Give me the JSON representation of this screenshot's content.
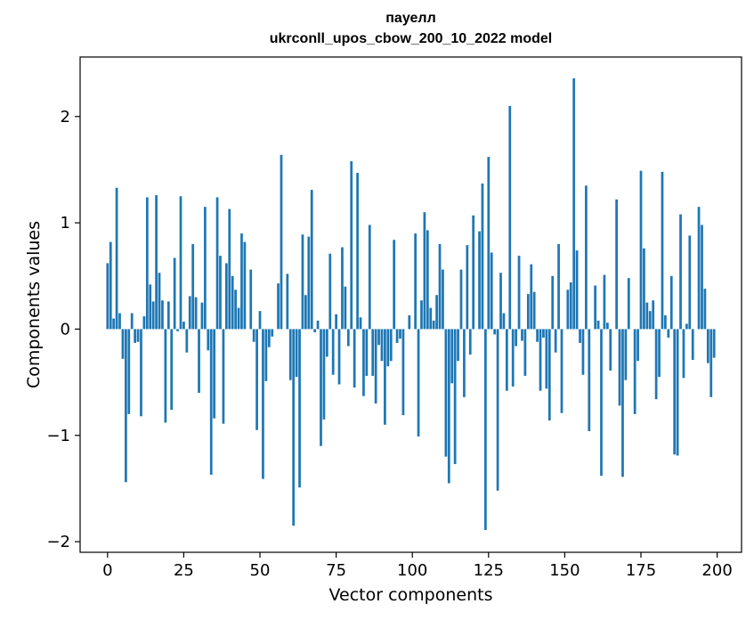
{
  "chart_data": {
    "type": "bar",
    "title_line1": "пауелл",
    "title_line2": "ukrconll_upos_cbow_200_10_2022 model",
    "xlabel": "Vector components",
    "ylabel": "Components values",
    "xlim": [
      -9,
      208
    ],
    "ylim": [
      -2.1,
      2.56
    ],
    "xticks": [
      0,
      25,
      50,
      75,
      100,
      125,
      150,
      175,
      200
    ],
    "yticks": [
      -2,
      -1,
      0,
      1,
      2
    ],
    "ytick_labels": [
      "−2",
      "−1",
      "0",
      "1",
      "2"
    ],
    "grid": false,
    "bar_color": "#1f77b4",
    "x": [
      0,
      1,
      2,
      3,
      4,
      5,
      6,
      7,
      8,
      9,
      10,
      11,
      12,
      13,
      14,
      15,
      16,
      17,
      18,
      19,
      20,
      21,
      22,
      23,
      24,
      25,
      26,
      27,
      28,
      29,
      30,
      31,
      32,
      33,
      34,
      35,
      36,
      37,
      38,
      39,
      40,
      41,
      42,
      43,
      44,
      45,
      46,
      47,
      48,
      49,
      50,
      51,
      52,
      53,
      54,
      55,
      56,
      57,
      58,
      59,
      60,
      61,
      62,
      63,
      64,
      65,
      66,
      67,
      68,
      69,
      70,
      71,
      72,
      73,
      74,
      75,
      76,
      77,
      78,
      79,
      80,
      81,
      82,
      83,
      84,
      85,
      86,
      87,
      88,
      89,
      90,
      91,
      92,
      93,
      94,
      95,
      96,
      97,
      98,
      99,
      100,
      101,
      102,
      103,
      104,
      105,
      106,
      107,
      108,
      109,
      110,
      111,
      112,
      113,
      114,
      115,
      116,
      117,
      118,
      119,
      120,
      121,
      122,
      123,
      124,
      125,
      126,
      127,
      128,
      129,
      130,
      131,
      132,
      133,
      134,
      135,
      136,
      137,
      138,
      139,
      140,
      141,
      142,
      143,
      144,
      145,
      146,
      147,
      148,
      149,
      150,
      151,
      152,
      153,
      154,
      155,
      156,
      157,
      158,
      159,
      160,
      161,
      162,
      163,
      164,
      165,
      166,
      167,
      168,
      169,
      170,
      171,
      172,
      173,
      174,
      175,
      176,
      177,
      178,
      179,
      180,
      181,
      182,
      183,
      184,
      185,
      186,
      187,
      188,
      189,
      190,
      191,
      192,
      193,
      194,
      195,
      196,
      197,
      198,
      199
    ],
    "values": [
      0.62,
      0.82,
      0.1,
      1.33,
      0.15,
      -0.28,
      -1.44,
      -0.8,
      0.15,
      -0.13,
      -0.12,
      -0.82,
      0.12,
      1.24,
      0.42,
      0.26,
      1.26,
      0.53,
      0.27,
      -0.88,
      0.26,
      -0.76,
      0.67,
      -0.02,
      1.25,
      0.07,
      -0.22,
      0.31,
      0.8,
      0.3,
      -0.6,
      0.25,
      1.15,
      -0.2,
      -1.37,
      -0.84,
      1.24,
      0.69,
      -0.89,
      0.62,
      1.13,
      0.5,
      0.37,
      0.2,
      0.9,
      0.82,
      0.0,
      0.56,
      -0.12,
      -0.95,
      0.17,
      -1.41,
      -0.49,
      -0.17,
      -0.07,
      0.0,
      0.43,
      1.64,
      0.0,
      0.52,
      -0.48,
      -1.85,
      -0.45,
      -1.49,
      0.89,
      0.32,
      0.87,
      1.31,
      -0.03,
      0.08,
      -1.1,
      -0.85,
      -0.26,
      0.71,
      -0.43,
      0.14,
      -0.52,
      0.77,
      0.4,
      -0.16,
      1.58,
      -0.55,
      1.47,
      0.11,
      -0.63,
      -0.44,
      0.98,
      -0.44,
      -0.7,
      -0.15,
      -0.3,
      -0.9,
      -0.35,
      -0.3,
      0.84,
      -0.13,
      -0.09,
      -0.81,
      0.0,
      0.13,
      0.0,
      0.9,
      -1.01,
      0.27,
      1.1,
      0.93,
      0.2,
      0.08,
      0.32,
      0.8,
      0.56,
      -1.2,
      -1.45,
      -0.51,
      -1.27,
      -0.3,
      0.56,
      -0.64,
      0.79,
      -0.24,
      1.07,
      0.0,
      0.92,
      1.37,
      -1.89,
      1.62,
      0.72,
      -0.05,
      -1.52,
      0.53,
      0.15,
      -0.58,
      2.1,
      -0.54,
      -0.16,
      0.69,
      -0.11,
      -0.44,
      0.33,
      0.61,
      0.35,
      -0.12,
      -0.58,
      -0.08,
      -0.56,
      -0.86,
      0.5,
      -0.22,
      0.8,
      -0.79,
      0.0,
      0.37,
      0.44,
      2.36,
      0.74,
      -0.13,
      -0.43,
      1.35,
      -0.96,
      0.0,
      0.41,
      0.08,
      -1.38,
      0.51,
      0.06,
      -0.39,
      0.0,
      1.22,
      -0.72,
      -1.39,
      -0.48,
      0.48,
      0.0,
      -0.8,
      -0.3,
      1.49,
      0.76,
      0.25,
      0.17,
      0.27,
      -0.66,
      -0.45,
      1.48,
      0.13,
      -0.08,
      0.5,
      -1.18,
      -1.19,
      1.08,
      -0.46,
      0.05,
      0.88,
      -0.29,
      0.0,
      1.15,
      0.98,
      0.38,
      -0.32,
      -0.64,
      -0.27
    ]
  }
}
